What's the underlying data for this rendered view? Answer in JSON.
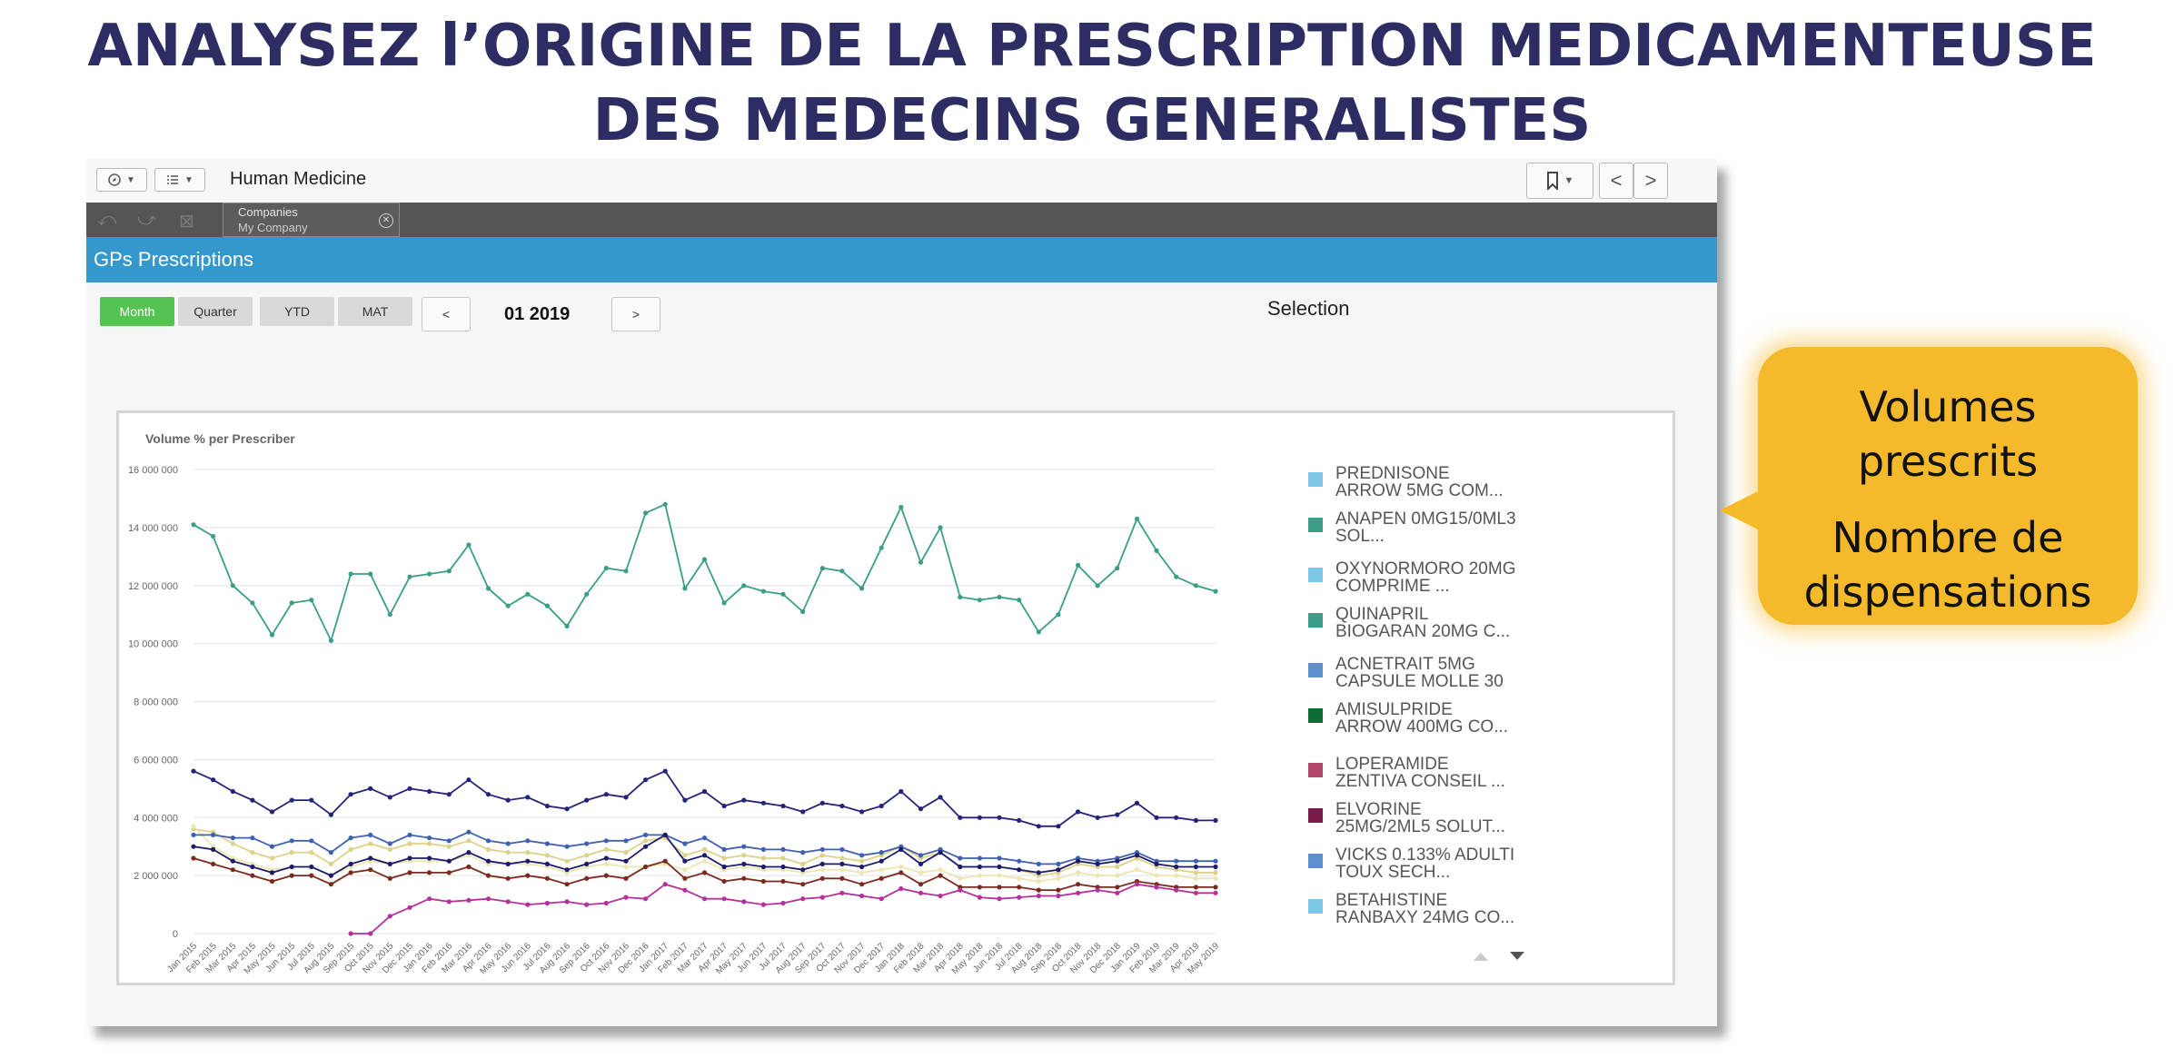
{
  "slide": {
    "title_line1": "ANALYSEZ l’ORIGINE DE LA PRESCRIPTION MEDICAMENTEUSE",
    "title_line2": "DES MEDECINS GENERALISTES"
  },
  "toolbar": {
    "app_title": "Human Medicine",
    "nav_icon": "compass-icon",
    "menu_icon": "list-icon",
    "bookmark_icon": "bookmark-icon",
    "prev_symbol": "<",
    "next_symbol": ">"
  },
  "selections": {
    "field": "Companies",
    "value": "My Company"
  },
  "sheet": {
    "title": "GPs Prescriptions"
  },
  "period": {
    "buttons": [
      "Month",
      "Quarter",
      "YTD",
      "MAT"
    ],
    "active": "Month",
    "prev_label": "<",
    "next_label": ">",
    "current": "01 2019"
  },
  "colors": {
    "accent_blue": "#3598cd",
    "active_green": "#55c352",
    "callout": "#f4ba2b",
    "title_navy": "#2e2d63"
  },
  "chart_data": {
    "type": "line",
    "title": "Volume % per Prescriber",
    "ylim": [
      0,
      16000000
    ],
    "y_ticks": [
      "16 000 000",
      "14 000 000",
      "12 000 000",
      "10 000 000",
      "8 000 000",
      "6 000 000",
      "4 000 000",
      "2 000 000",
      "0"
    ],
    "x": [
      "Jan 2015",
      "Feb 2015",
      "Mar 2015",
      "Apr 2015",
      "May 2015",
      "Jun 2015",
      "Jul 2015",
      "Aug 2015",
      "Sep 2015",
      "Oct 2015",
      "Nov 2015",
      "Dec 2015",
      "Jan 2016",
      "Feb 2016",
      "Mar 2016",
      "Apr 2016",
      "May 2016",
      "Jun 2016",
      "Jul 2016",
      "Aug 2016",
      "Sep 2016",
      "Oct 2016",
      "Nov 2016",
      "Dec 2016",
      "Jan 2017",
      "Feb 2017",
      "Mar 2017",
      "Apr 2017",
      "May 2017",
      "Jun 2017",
      "Jul 2017",
      "Aug 2017",
      "Sep 2017",
      "Oct 2017",
      "Nov 2017",
      "Dec 2017",
      "Jan 2018",
      "Feb 2018",
      "Mar 2018",
      "Apr 2018",
      "May 2018",
      "Jun 2018",
      "Jul 2018",
      "Aug 2018",
      "Sep 2018",
      "Oct 2018",
      "Nov 2018",
      "Dec 2018",
      "Jan 2019",
      "Feb 2019",
      "Mar 2019",
      "Apr 2019",
      "May 2019"
    ],
    "grid": true,
    "series": [
      {
        "color": "#3a9e86",
        "values": [
          14100000,
          13700000,
          12000000,
          11400000,
          10300000,
          11400000,
          11500000,
          10100000,
          12400000,
          12400000,
          11000000,
          12300000,
          12400000,
          12500000,
          13400000,
          11900000,
          11300000,
          11700000,
          11300000,
          10600000,
          11700000,
          12600000,
          12500000,
          14500000,
          14800000,
          11900000,
          12900000,
          11400000,
          12000000,
          11800000,
          11700000,
          11100000,
          12600000,
          12500000,
          11900000,
          13300000,
          14700000,
          12800000,
          14000000,
          11600000,
          11500000,
          11600000,
          11500000,
          10400000,
          11000000,
          12700000,
          12000000,
          12600000,
          14300000,
          13200000,
          12300000,
          12000000,
          11800000
        ]
      },
      {
        "color": "#23237a",
        "values": [
          5600000,
          5300000,
          4900000,
          4600000,
          4200000,
          4600000,
          4600000,
          4100000,
          4800000,
          5000000,
          4700000,
          5000000,
          4900000,
          4800000,
          5300000,
          4800000,
          4600000,
          4700000,
          4400000,
          4300000,
          4600000,
          4800000,
          4700000,
          5300000,
          5600000,
          4600000,
          4900000,
          4400000,
          4600000,
          4500000,
          4400000,
          4200000,
          4500000,
          4400000,
          4200000,
          4400000,
          4900000,
          4300000,
          4700000,
          4000000,
          4000000,
          4000000,
          3900000,
          3700000,
          3700000,
          4200000,
          4000000,
          4100000,
          4500000,
          4000000,
          4000000,
          3900000,
          3900000
        ]
      },
      {
        "color": "#ded18a",
        "values": [
          3600000,
          3500000,
          3100000,
          2800000,
          2600000,
          2800000,
          2800000,
          2400000,
          2900000,
          3100000,
          2900000,
          3100000,
          3100000,
          3000000,
          3200000,
          2900000,
          2800000,
          2800000,
          2700000,
          2500000,
          2700000,
          2900000,
          2800000,
          3200000,
          3300000,
          2700000,
          2900000,
          2600000,
          2700000,
          2600000,
          2600000,
          2400000,
          2700000,
          2600000,
          2500000,
          2700000,
          3000000,
          2600000,
          2800000,
          2300000,
          2300000,
          2300000,
          2200000,
          2000000,
          2100000,
          2400000,
          2300000,
          2300000,
          2600000,
          2300000,
          2200000,
          2100000,
          2100000
        ]
      },
      {
        "color": "#ede6b3",
        "values": [
          3700000,
          3000000,
          2600000,
          2400000,
          2200000,
          2300000,
          2300000,
          2000000,
          2300000,
          2500000,
          2400000,
          2500000,
          2500000,
          2500000,
          2700000,
          2400000,
          2400000,
          2400000,
          2300000,
          2100000,
          2300000,
          2400000,
          2300000,
          2300000,
          2400000,
          2200000,
          2500000,
          2200000,
          2300000,
          2200000,
          2200000,
          2100000,
          2200000,
          2200000,
          2100000,
          2200000,
          2300000,
          2100000,
          2200000,
          1900000,
          2000000,
          2000000,
          1900000,
          1800000,
          1900000,
          2100000,
          2000000,
          2000000,
          2200000,
          2000000,
          2000000,
          1900000,
          1900000
        ]
      },
      {
        "color": "#3f5fb0",
        "values": [
          3400000,
          3400000,
          3300000,
          3300000,
          3000000,
          3200000,
          3200000,
          2800000,
          3300000,
          3400000,
          3100000,
          3400000,
          3300000,
          3200000,
          3500000,
          3200000,
          3100000,
          3200000,
          3100000,
          3000000,
          3100000,
          3200000,
          3200000,
          3400000,
          3400000,
          3100000,
          3300000,
          2900000,
          3000000,
          2900000,
          2900000,
          2800000,
          2900000,
          2900000,
          2700000,
          2800000,
          3000000,
          2700000,
          2900000,
          2600000,
          2600000,
          2600000,
          2500000,
          2400000,
          2400000,
          2600000,
          2500000,
          2600000,
          2800000,
          2500000,
          2500000,
          2500000,
          2500000
        ]
      },
      {
        "color": "#1c1c6b",
        "values": [
          3000000,
          2900000,
          2500000,
          2300000,
          2100000,
          2300000,
          2300000,
          2000000,
          2400000,
          2600000,
          2400000,
          2600000,
          2600000,
          2500000,
          2800000,
          2500000,
          2400000,
          2500000,
          2400000,
          2200000,
          2400000,
          2600000,
          2500000,
          3000000,
          3400000,
          2500000,
          2700000,
          2300000,
          2400000,
          2300000,
          2300000,
          2200000,
          2400000,
          2400000,
          2300000,
          2500000,
          2900000,
          2400000,
          2800000,
          2300000,
          2300000,
          2300000,
          2200000,
          2100000,
          2200000,
          2500000,
          2400000,
          2500000,
          2700000,
          2400000,
          2300000,
          2300000,
          2300000
        ]
      },
      {
        "color": "#7a2a1e",
        "values": [
          2600000,
          2400000,
          2200000,
          2000000,
          1800000,
          2000000,
          2000000,
          1700000,
          2100000,
          2200000,
          1900000,
          2100000,
          2100000,
          2100000,
          2300000,
          2000000,
          1900000,
          2000000,
          1900000,
          1700000,
          1900000,
          2000000,
          1900000,
          2300000,
          2500000,
          1900000,
          2100000,
          1800000,
          1900000,
          1800000,
          1800000,
          1700000,
          1900000,
          1900000,
          1700000,
          1900000,
          2100000,
          1700000,
          2000000,
          1600000,
          1600000,
          1600000,
          1600000,
          1500000,
          1500000,
          1700000,
          1600000,
          1600000,
          1800000,
          1700000,
          1600000,
          1600000,
          1600000
        ]
      },
      {
        "color": "#b5309a",
        "values": [
          null,
          null,
          null,
          null,
          null,
          null,
          null,
          null,
          0,
          0,
          600000,
          900000,
          1200000,
          1100000,
          1150000,
          1200000,
          1100000,
          1000000,
          1050000,
          1100000,
          1000000,
          1050000,
          1250000,
          1200000,
          1700000,
          1500000,
          1200000,
          1200000,
          1100000,
          1000000,
          1050000,
          1200000,
          1250000,
          1400000,
          1300000,
          1200000,
          1550000,
          1400000,
          1300000,
          1500000,
          1250000,
          1200000,
          1250000,
          1300000,
          1300000,
          1400000,
          1500000,
          1400000,
          1700000,
          1600000,
          1500000,
          1400000,
          1400000
        ]
      }
    ],
    "legend": {
      "title": "Selection",
      "placement": "right",
      "items": [
        {
          "label": "PREDNISONE ARROW 5MG COM...",
          "color": "#7fc7e6"
        },
        {
          "label": "ANAPEN 0MG15/0ML3 SOL...",
          "color": "#3a9e86"
        },
        {
          "label": "OXYNORMORO 20MG COMPRIME ...",
          "color": "#7fc7e6"
        },
        {
          "label": "QUINAPRIL BIOGARAN 20MG C...",
          "color": "#3a9e86"
        },
        {
          "label": "ACNETRAIT 5MG CAPSULE MOLLE 30",
          "color": "#5f8fcf"
        },
        {
          "label": "AMISULPRIDE ARROW 400MG CO...",
          "color": "#0e6b34"
        },
        {
          "label": "LOPERAMIDE ZENTIVA CONSEIL ...",
          "color": "#b04569"
        },
        {
          "label": "ELVORINE 25MG/2ML5 SOLUT...",
          "color": "#7a1a4a"
        },
        {
          "label": "VICKS 0.133% ADULTI TOUX SECH...",
          "color": "#5f8fcf"
        },
        {
          "label": "BETAHISTINE RANBAXY 24MG CO...",
          "color": "#7fc7e6"
        }
      ]
    }
  },
  "callout": {
    "line1": "Volumes",
    "line2": "prescrits",
    "line3": "Nombre de",
    "line4": "dispensations"
  }
}
